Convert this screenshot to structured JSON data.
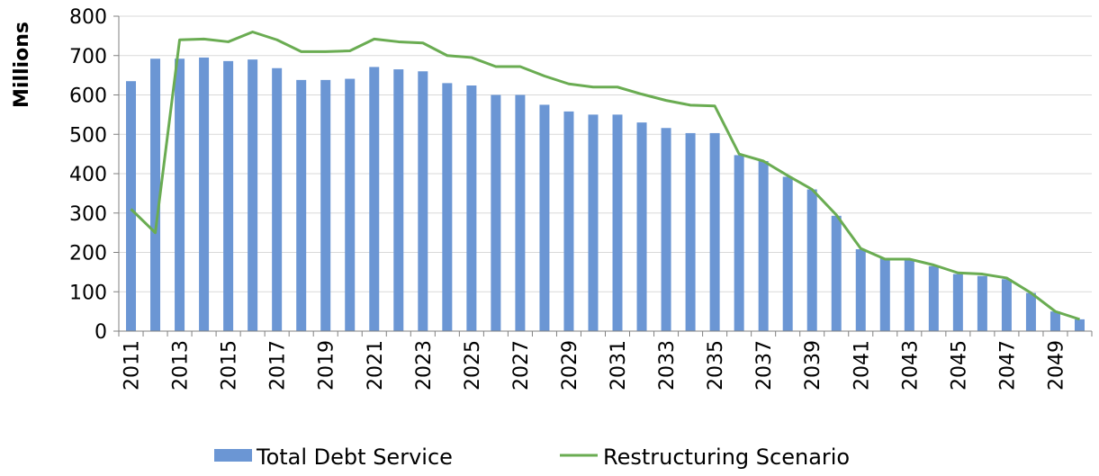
{
  "chart_data": {
    "type": "bar",
    "ylabel": "Millions",
    "ylim": [
      0,
      800
    ],
    "yticks": [
      0,
      100,
      200,
      300,
      400,
      500,
      600,
      700,
      800
    ],
    "grid": true,
    "legend_position": "bottom",
    "categories": [
      2011,
      2012,
      2013,
      2014,
      2015,
      2016,
      2017,
      2018,
      2019,
      2020,
      2021,
      2022,
      2023,
      2024,
      2025,
      2026,
      2027,
      2028,
      2029,
      2030,
      2031,
      2032,
      2033,
      2034,
      2035,
      2036,
      2037,
      2038,
      2039,
      2040,
      2041,
      2042,
      2043,
      2044,
      2045,
      2046,
      2047,
      2048,
      2049,
      2050
    ],
    "xtick_labels": [
      "2011",
      "2013",
      "2015",
      "2017",
      "2019",
      "2021",
      "2023",
      "2025",
      "2027",
      "2029",
      "2031",
      "2033",
      "2035",
      "2037",
      "2039",
      "2041",
      "2043",
      "2045",
      "2047",
      "2049"
    ],
    "series": [
      {
        "name": "Total Debt Service",
        "type": "bar",
        "color": "#6b96d4",
        "values": [
          635,
          692,
          692,
          695,
          686,
          690,
          668,
          638,
          638,
          641,
          671,
          665,
          660,
          630,
          624,
          600,
          600,
          575,
          558,
          550,
          550,
          530,
          516,
          503,
          503,
          447,
          432,
          392,
          360,
          293,
          208,
          185,
          180,
          165,
          145,
          140,
          132,
          97,
          50,
          30
        ]
      },
      {
        "name": "Restructuring Scenario",
        "type": "line",
        "color": "#6aac52",
        "values": [
          310,
          250,
          740,
          742,
          735,
          760,
          740,
          710,
          710,
          712,
          742,
          735,
          732,
          700,
          695,
          672,
          672,
          648,
          628,
          620,
          620,
          602,
          586,
          574,
          572,
          450,
          432,
          395,
          360,
          295,
          210,
          183,
          183,
          168,
          148,
          145,
          135,
          97,
          50,
          30
        ]
      }
    ]
  }
}
